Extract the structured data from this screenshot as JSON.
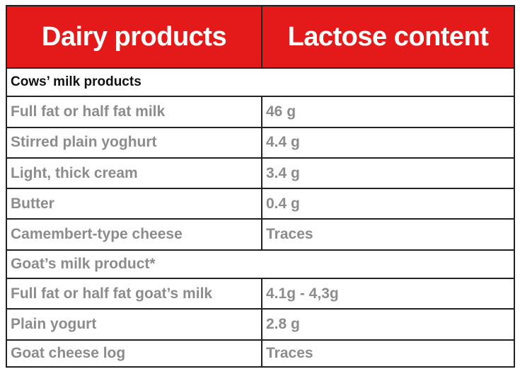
{
  "header": {
    "col1": "Dairy products",
    "col2": "Lactose content"
  },
  "sections": [
    {
      "title": "Cows’ milk products",
      "rows": [
        {
          "product": "Full fat or half fat milk",
          "lactose": "46 g"
        },
        {
          "product": "Stirred plain yoghurt",
          "lactose": "4.4 g"
        },
        {
          "product": "Light, thick cream",
          "lactose": "3.4 g"
        },
        {
          "product": "Butter",
          "lactose": "0.4 g"
        },
        {
          "product": "Camembert-type cheese",
          "lactose": "Traces"
        }
      ]
    },
    {
      "title": "Goat’s milk product*",
      "rows": [
        {
          "product": "Full fat or half fat goat’s milk",
          "lactose": "4.1g - 4,3g"
        },
        {
          "product": "Plain yogurt",
          "lactose": "2.8 g"
        },
        {
          "product": "Goat cheese log",
          "lactose": "Traces"
        }
      ]
    }
  ],
  "colors": {
    "header_bg": "#e41a1a",
    "header_text": "#ffffff",
    "body_text": "#8c8c8c",
    "section_text_dark": "#111111",
    "border": "#222222"
  }
}
